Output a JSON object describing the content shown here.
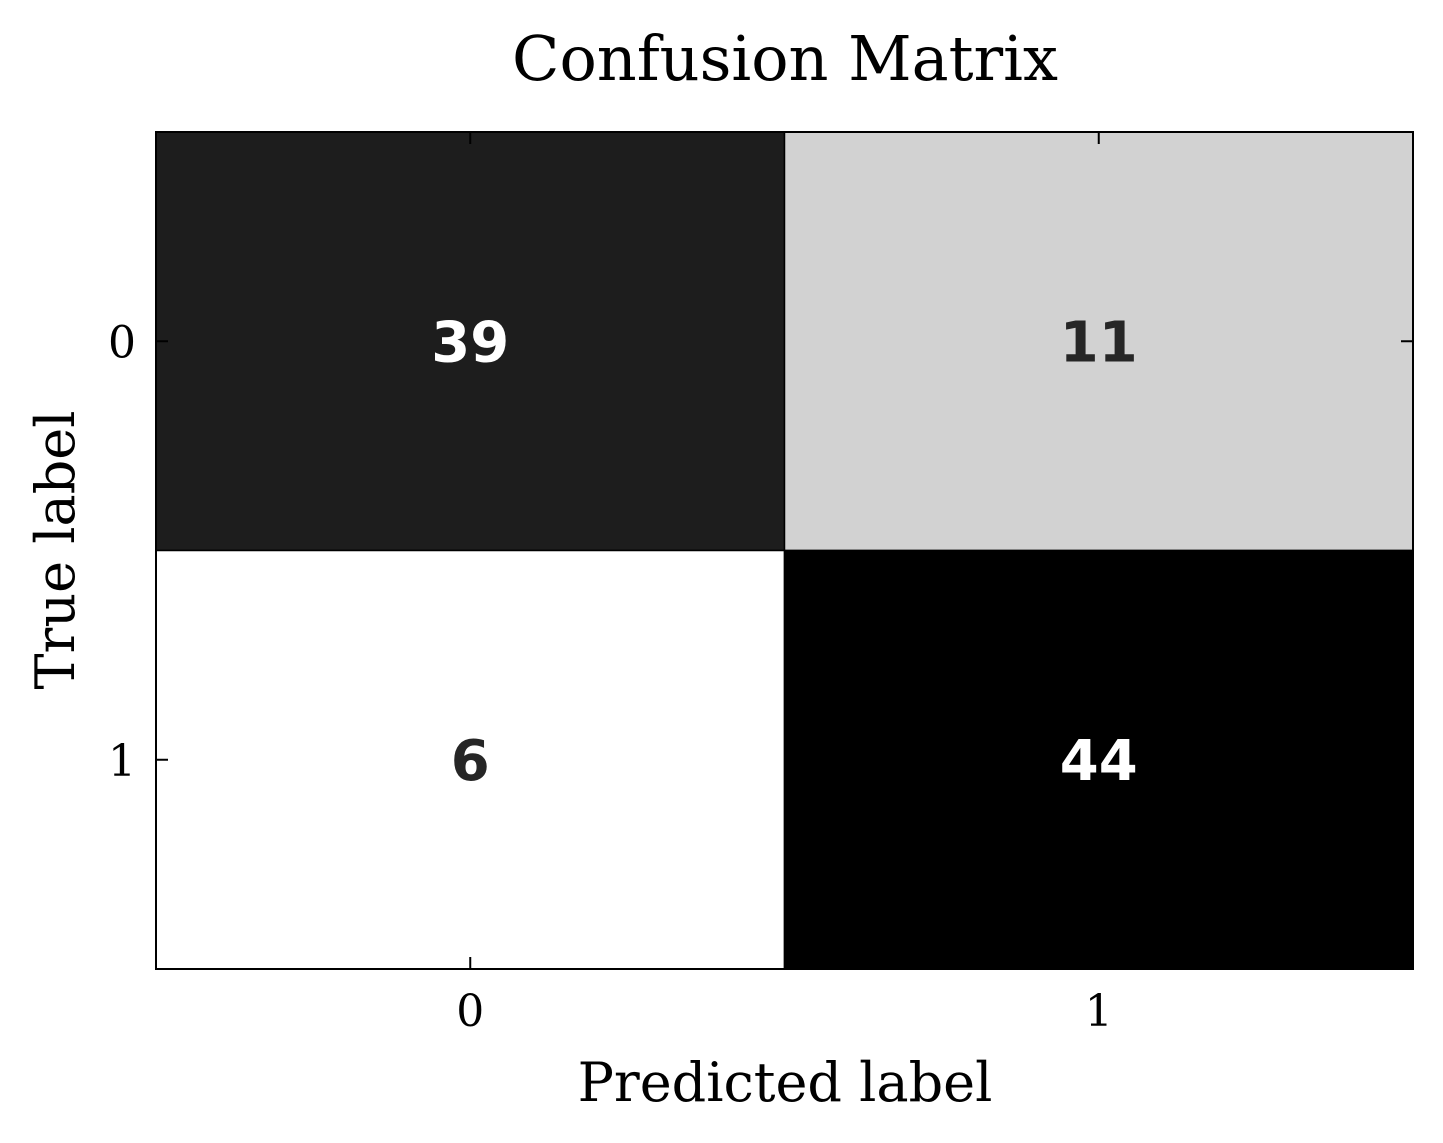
{
  "chart_data": {
    "type": "heatmap",
    "title": "Confusion Matrix",
    "xlabel": "Predicted label",
    "ylabel": "True label",
    "x_categories": [
      "0",
      "1"
    ],
    "y_categories": [
      "0",
      "1"
    ],
    "values": [
      [
        39,
        11
      ],
      [
        6,
        44
      ]
    ],
    "colormap": "Greys",
    "colors": {
      "low": "#ffffff",
      "high": "#000000",
      "text_dark": "#262626",
      "text_light": "#ffffff",
      "axes": "#000000"
    },
    "grid": false,
    "legend": "none"
  }
}
